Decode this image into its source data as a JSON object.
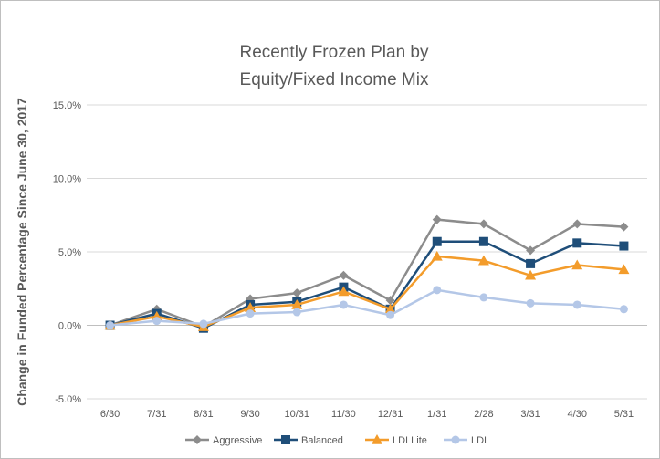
{
  "chart_data": {
    "type": "line",
    "title_lines": [
      "Recently Frozen Plan by",
      "Equity/Fixed Income Mix"
    ],
    "ylabel": "Change in Funded Percentage Since June 30, 2017",
    "xlabel": "",
    "categories": [
      "6/30",
      "7/31",
      "8/31",
      "9/30",
      "10/31",
      "11/30",
      "12/31",
      "1/31",
      "2/28",
      "3/31",
      "4/30",
      "5/31"
    ],
    "ylim": [
      -5.0,
      15.0
    ],
    "yticks": [
      -5.0,
      0.0,
      5.0,
      10.0,
      15.0
    ],
    "ytick_labels": [
      "-5.0%",
      "0.0%",
      "5.0%",
      "10.0%",
      "15.0%"
    ],
    "grid": "horizontal",
    "legend_position": "bottom",
    "series": [
      {
        "name": "Aggressive",
        "color": "#8c8c8c",
        "marker": "diamond",
        "values": [
          0.0,
          1.1,
          -0.1,
          1.8,
          2.2,
          3.4,
          1.7,
          7.2,
          6.9,
          5.1,
          6.9,
          6.7
        ]
      },
      {
        "name": "Balanced",
        "color": "#1f4e79",
        "marker": "square",
        "values": [
          0.0,
          0.8,
          -0.2,
          1.4,
          1.6,
          2.6,
          1.1,
          5.7,
          5.7,
          4.2,
          5.6,
          5.4
        ]
      },
      {
        "name": "LDI Lite",
        "color": "#f39c2b",
        "marker": "triangle",
        "values": [
          0.0,
          0.6,
          -0.1,
          1.2,
          1.4,
          2.3,
          1.1,
          4.7,
          4.4,
          3.4,
          4.1,
          3.8
        ]
      },
      {
        "name": "LDI",
        "color": "#b4c7e7",
        "marker": "circle",
        "values": [
          0.0,
          0.3,
          0.1,
          0.8,
          0.9,
          1.4,
          0.7,
          2.4,
          1.9,
          1.5,
          1.4,
          1.1
        ]
      }
    ]
  }
}
